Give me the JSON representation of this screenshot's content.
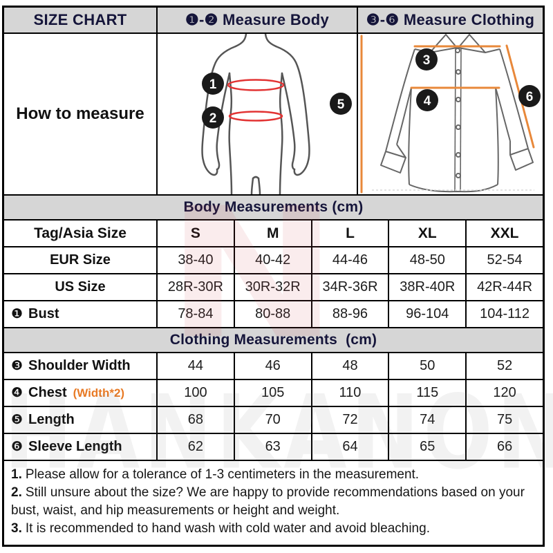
{
  "header": {
    "title": "SIZE CHART",
    "body_section": "❶-❷ Measure Body",
    "clothing_section": "❸-❻ Measure Clothing"
  },
  "how_to_measure": "How to measure",
  "figures": {
    "body_markers": [
      "1",
      "2"
    ],
    "shirt_markers": [
      "3",
      "4",
      "5",
      "6"
    ]
  },
  "body_table": {
    "title": "Body Measurements (cm)",
    "columns": [
      "Tag/Asia Size",
      "S",
      "M",
      "L",
      "XL",
      "XXL"
    ],
    "rows": [
      {
        "marker": "",
        "label": "EUR Size",
        "suffix": "",
        "align": "center",
        "values": [
          "38-40",
          "40-42",
          "44-46",
          "48-50",
          "52-54"
        ]
      },
      {
        "marker": "",
        "label": "US Size",
        "suffix": "",
        "align": "center",
        "values": [
          "28R-30R",
          "30R-32R",
          "34R-36R",
          "38R-40R",
          "42R-44R"
        ]
      },
      {
        "marker": "❶",
        "label": "Bust",
        "suffix": "",
        "align": "left",
        "values": [
          "78-84",
          "80-88",
          "88-96",
          "96-104",
          "104-112"
        ]
      }
    ]
  },
  "clothing_table": {
    "title": "Clothing Measurements  (cm)",
    "rows": [
      {
        "marker": "❸",
        "label": "Shoulder Width",
        "suffix": "",
        "align": "left",
        "values": [
          "44",
          "46",
          "48",
          "50",
          "52"
        ]
      },
      {
        "marker": "❹",
        "label": "Chest",
        "suffix": "(Width*2)",
        "align": "left",
        "values": [
          "100",
          "105",
          "110",
          "115",
          "120"
        ]
      },
      {
        "marker": "❺",
        "label": "Length",
        "suffix": "",
        "align": "left",
        "values": [
          "68",
          "70",
          "72",
          "74",
          "75"
        ]
      },
      {
        "marker": "❻",
        "label": "Sleeve Length",
        "suffix": "",
        "align": "left",
        "values": [
          "62",
          "63",
          "64",
          "65",
          "66"
        ]
      }
    ]
  },
  "notes": [
    {
      "num": "1.",
      "text": "Please allow for a tolerance of 1-3 centimeters in the measurement."
    },
    {
      "num": "2.",
      "text": "Still unsure about the size? We are happy to provide recommendations based on your bust, waist, and hip measurements or height and weight."
    },
    {
      "num": "3.",
      "text": "It is recommended to hand wash with cold water and avoid bleaching."
    }
  ],
  "watermark": "HANKANON",
  "colors": {
    "header_bg": "#d6d6d6",
    "border": "#000000",
    "title_text": "#15153a",
    "accent_orange": "#e8883a",
    "accent_red": "#e23333",
    "marker_fill": "#1a1a1a"
  }
}
